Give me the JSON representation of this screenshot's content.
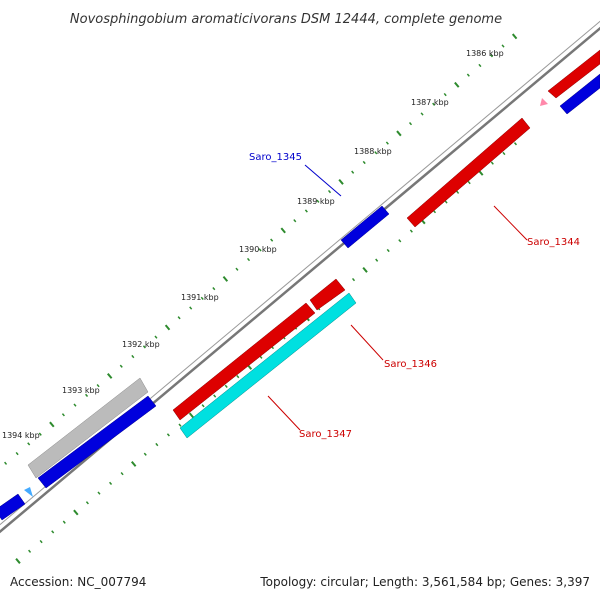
{
  "title": "Novosphingobium aromaticivorans DSM 12444, complete genome",
  "footer": {
    "accession": "Accession: NC_007794",
    "topology": "Topology: circular; Length: 3,561,584 bp; Genes: 3,397"
  },
  "ruler": {
    "ticks": [
      "1386 kbp",
      "1387 kbp",
      "1388 kbp",
      "1389 kbp",
      "1390 kbp",
      "1391 kbp",
      "1392 kbp",
      "1393 kbp",
      "1394 kbp"
    ]
  },
  "colors": {
    "backbone": "#777777",
    "tick": "#2e8b2e",
    "forward_gene": "#0000dd",
    "reverse_gene": "#dd0000",
    "rna_gene": "#00e0e0",
    "pseudo_gene": "#bbbbbb",
    "small_feature_light_blue": "#44aaff",
    "small_feature_pink": "#ff88aa",
    "label_blue": "#0000cc",
    "label_red": "#cc0000"
  },
  "labels": {
    "saro_1345": "Saro_1345",
    "saro_1344": "Saro_1344",
    "saro_1346": "Saro_1346",
    "saro_1347": "Saro_1347"
  }
}
